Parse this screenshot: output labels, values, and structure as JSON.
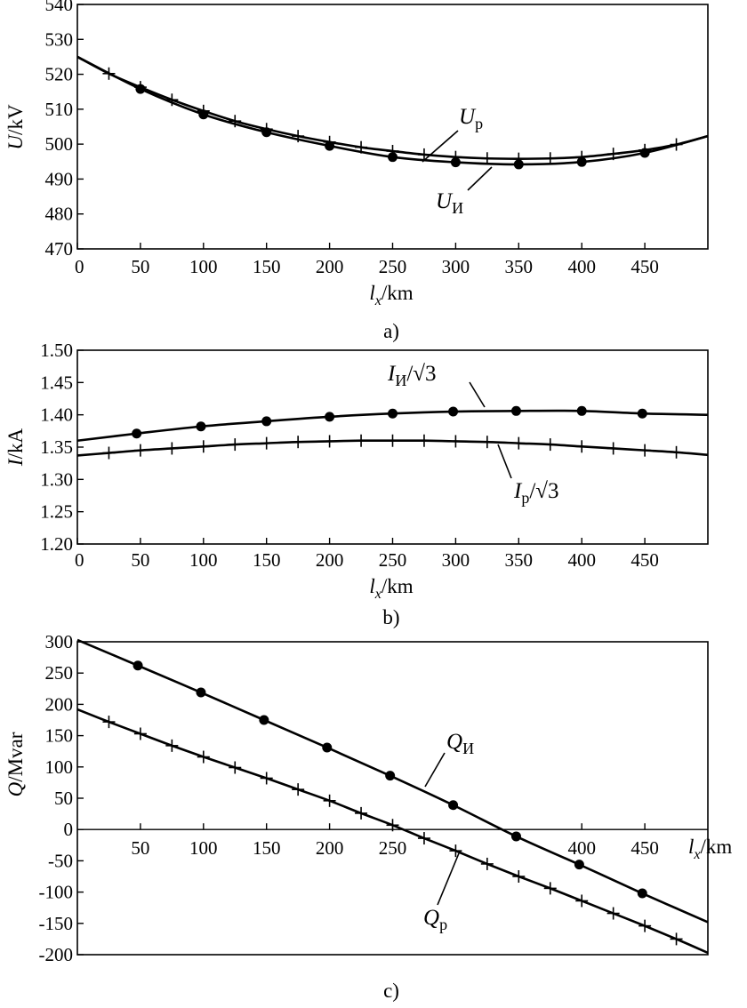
{
  "chart_data": [
    {
      "panel": "a)",
      "type": "line",
      "xlabel": "l_x/km",
      "ylabel": "U/kV",
      "xlim": [
        0,
        500
      ],
      "ylim": [
        470,
        540
      ],
      "xticks": [
        0,
        50,
        100,
        150,
        200,
        250,
        300,
        350,
        400,
        450
      ],
      "yticks": [
        470,
        480,
        490,
        500,
        510,
        520,
        530,
        540
      ],
      "series": [
        {
          "name": "Up",
          "marker": "plus",
          "x": [
            0,
            25,
            50,
            75,
            100,
            125,
            150,
            175,
            200,
            225,
            250,
            275,
            300,
            325,
            350,
            375,
            400,
            425,
            450,
            475,
            500
          ],
          "values": [
            525,
            520.2,
            516.3,
            512.7,
            509.5,
            506.6,
            504.3,
            502.3,
            500.6,
            499.1,
            498,
            497,
            496.3,
            495.9,
            495.8,
            495.9,
            496.3,
            497.2,
            498.3,
            499.9,
            502.3
          ]
        },
        {
          "name": "Uи",
          "marker": "dot",
          "x": [
            0,
            50,
            100,
            150,
            200,
            250,
            300,
            350,
            400,
            450,
            500
          ],
          "values": [
            525,
            515.8,
            508.5,
            503.4,
            499.5,
            496.3,
            494.8,
            494.2,
            494.9,
            497.5,
            502.3
          ]
        }
      ],
      "annotations": [
        {
          "text": "U",
          "sub": "p"
        },
        {
          "text": "U",
          "sub": "И"
        }
      ]
    },
    {
      "panel": "b)",
      "type": "line",
      "xlabel": "l_x/km",
      "ylabel": "I/kA",
      "xlim": [
        0,
        500
      ],
      "ylim": [
        1.2,
        1.5
      ],
      "xticks": [
        0,
        50,
        100,
        150,
        200,
        250,
        300,
        350,
        400,
        450
      ],
      "yticks": [
        "1.20",
        "1.25",
        "1.30",
        "1.35",
        "1.40",
        "1.45",
        "1.50"
      ],
      "series": [
        {
          "name": "Iи/√3",
          "marker": "dot",
          "x": [
            0,
            47,
            98,
            150,
            200,
            250,
            298,
            348,
            400,
            448,
            500
          ],
          "values": [
            1.36,
            1.371,
            1.382,
            1.39,
            1.397,
            1.402,
            1.405,
            1.406,
            1.406,
            1.402,
            1.4
          ]
        },
        {
          "name": "Ip/√3",
          "marker": "plus",
          "x": [
            0,
            25,
            50,
            75,
            100,
            125,
            150,
            175,
            200,
            225,
            250,
            275,
            300,
            325,
            350,
            375,
            400,
            425,
            450,
            475,
            500
          ],
          "values": [
            1.337,
            1.341,
            1.345,
            1.348,
            1.351,
            1.354,
            1.356,
            1.358,
            1.359,
            1.36,
            1.36,
            1.36,
            1.359,
            1.358,
            1.356,
            1.354,
            1.351,
            1.348,
            1.345,
            1.342,
            1.338
          ]
        }
      ],
      "annotations": [
        {
          "text": "I",
          "sub": "И",
          "tail": "/√3"
        },
        {
          "text": "I",
          "sub": "p",
          "tail": "/√3"
        }
      ]
    },
    {
      "panel": "c)",
      "type": "line",
      "xlabel": "l_x/km",
      "ylabel": "Q/Mvar",
      "xlim": [
        0,
        500
      ],
      "ylim": [
        -200,
        300
      ],
      "xticks": [
        50,
        100,
        150,
        200,
        250,
        400,
        450
      ],
      "yticks": [
        -200,
        -150,
        -100,
        -50,
        0,
        50,
        100,
        150,
        200,
        250,
        300
      ],
      "series": [
        {
          "name": "Qи",
          "marker": "dot",
          "x": [
            0,
            48,
            98,
            148,
            198,
            248,
            298,
            348,
            398,
            448,
            500
          ],
          "values": [
            303,
            262,
            219,
            175,
            131,
            86,
            39,
            -11,
            -56,
            -102,
            -148
          ]
        },
        {
          "name": "Qp",
          "marker": "plus",
          "x": [
            0,
            25,
            50,
            75,
            100,
            125,
            150,
            175,
            200,
            225,
            250,
            275,
            300,
            325,
            350,
            375,
            400,
            425,
            450,
            475,
            500
          ],
          "values": [
            192,
            172,
            153,
            134,
            116,
            99,
            82,
            64,
            46,
            26,
            7,
            -14,
            -34,
            -55,
            -75,
            -94,
            -114,
            -134,
            -154,
            -175,
            -197
          ]
        }
      ],
      "annotations": [
        {
          "text": "Q",
          "sub": "И"
        },
        {
          "text": "Q",
          "sub": "p"
        }
      ]
    }
  ]
}
